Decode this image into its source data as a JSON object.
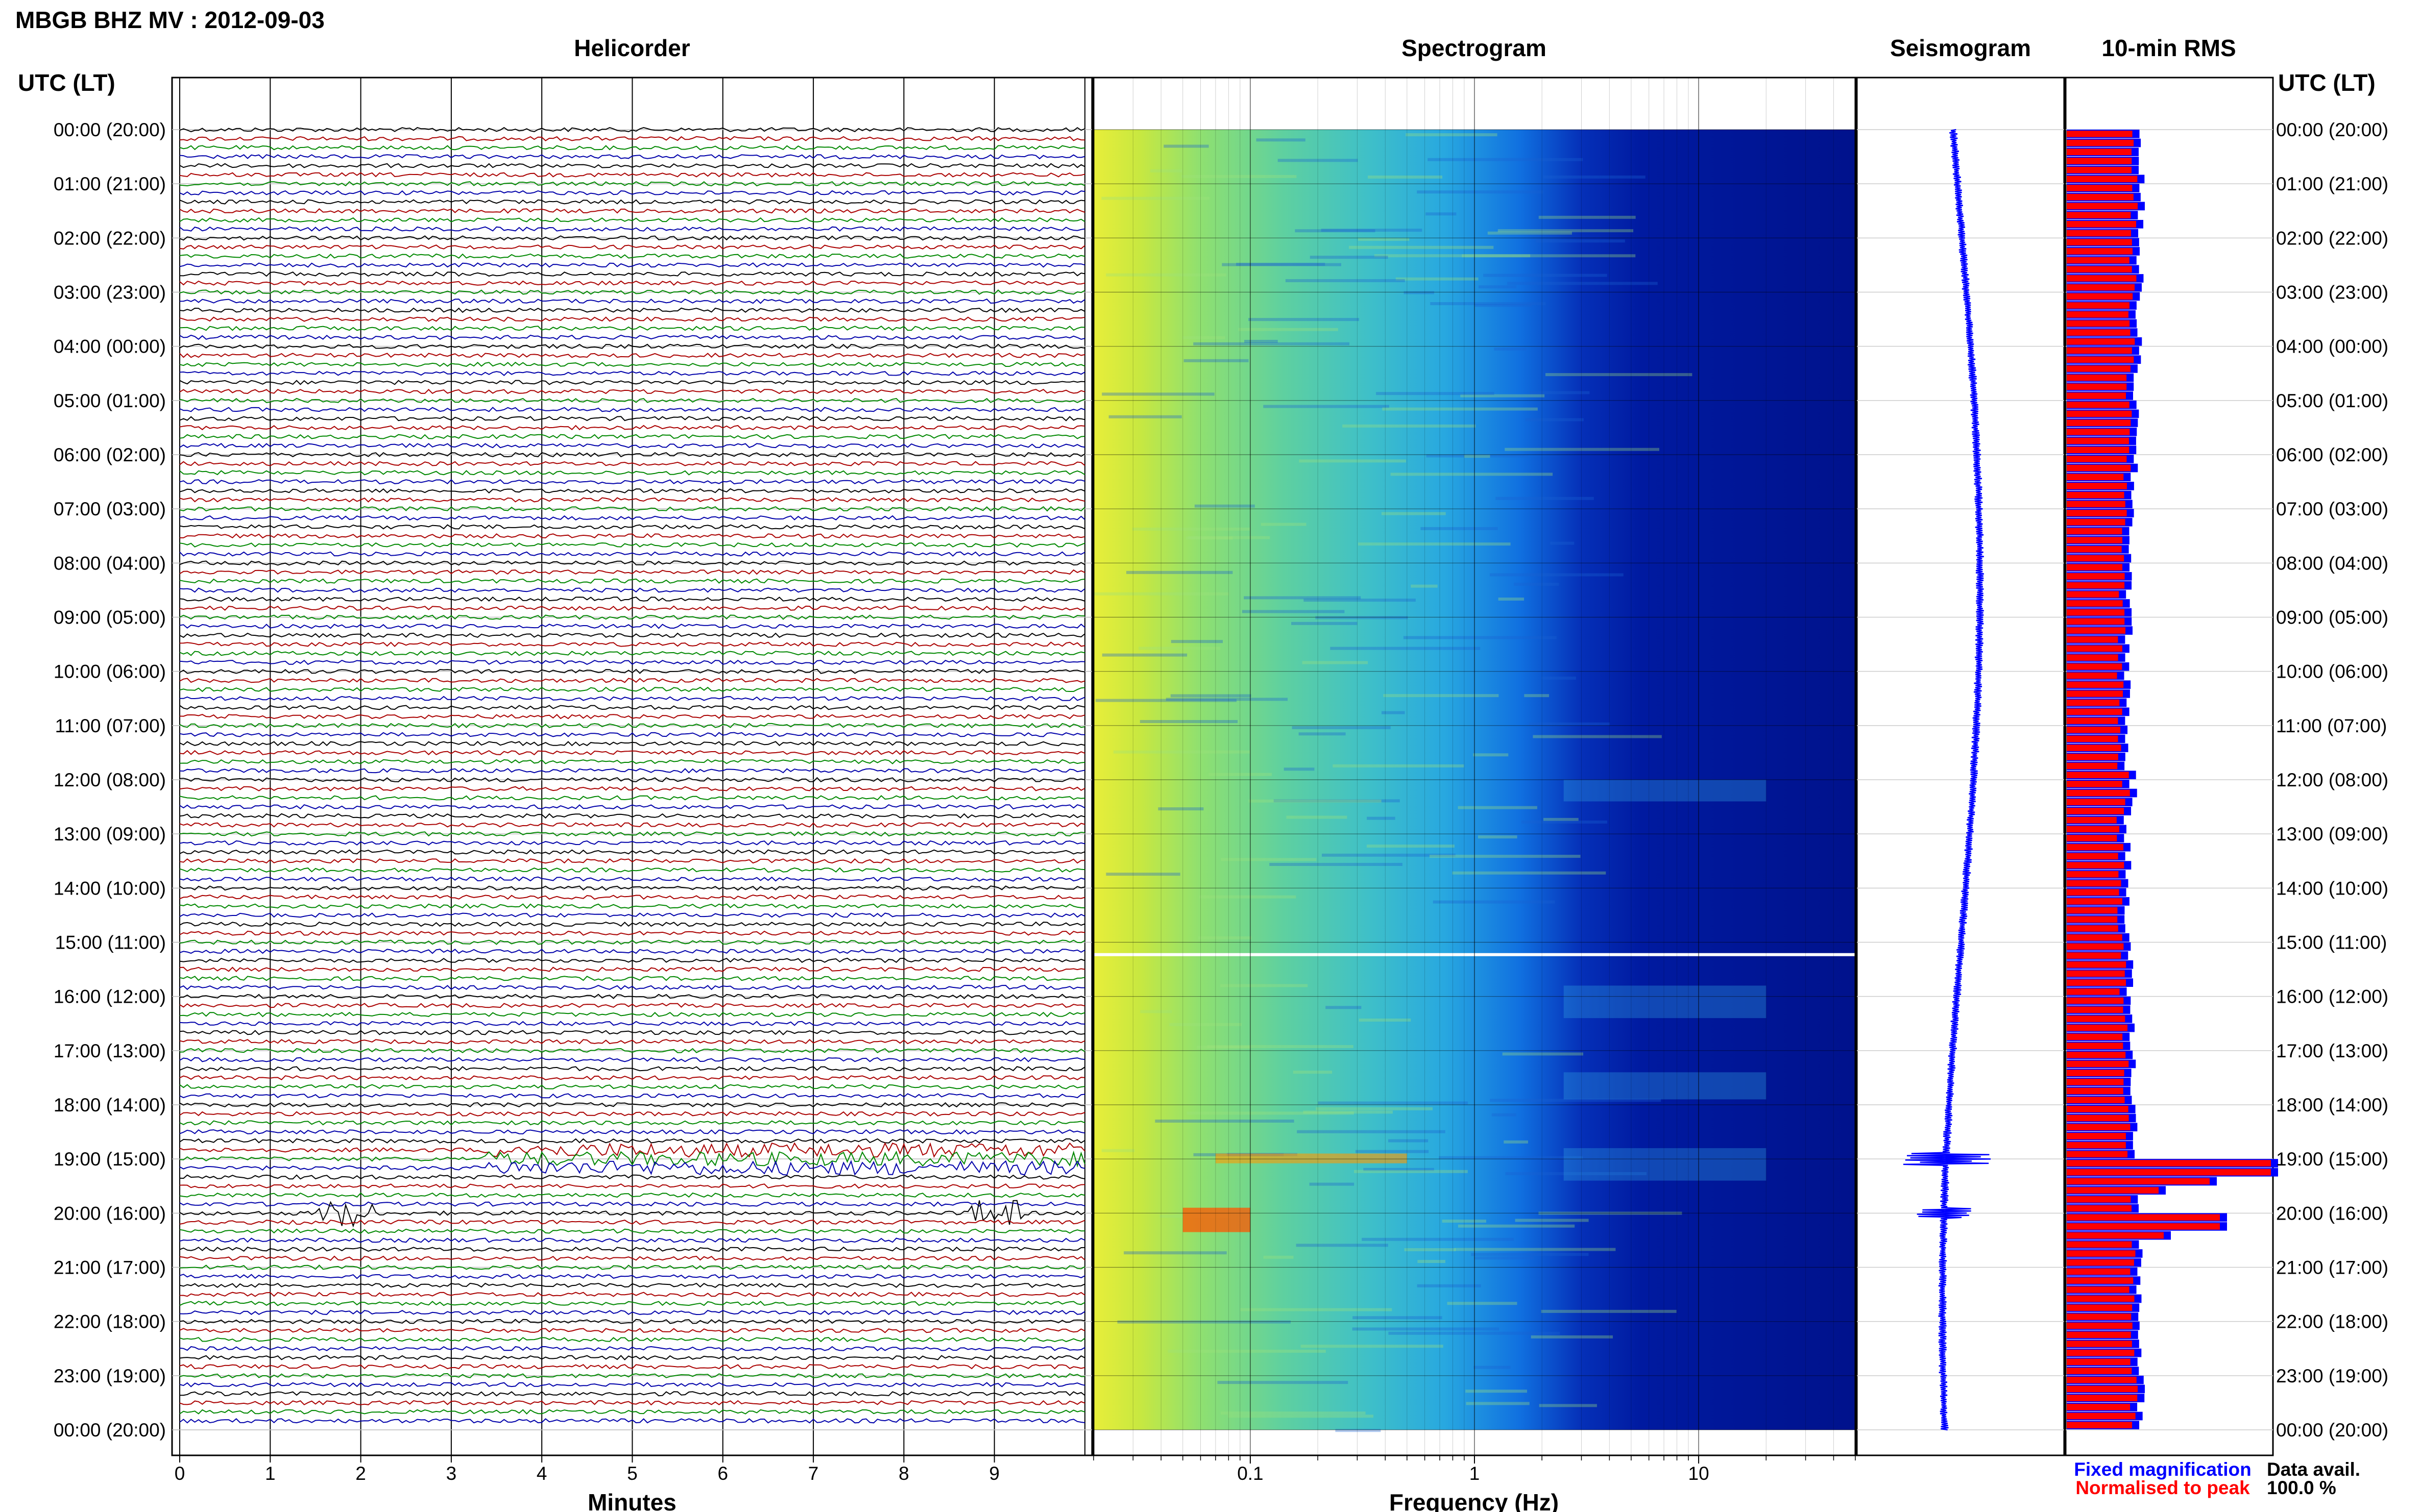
{
  "header": {
    "title": "MBGB BHZ MV : 2012-09-03",
    "panel_helicorder": "Helicorder",
    "panel_spectrogram": "Spectrogram",
    "panel_seismogram": "Seismogram",
    "panel_rms": "10-min RMS",
    "time_axis_label": "UTC (LT)"
  },
  "axes": {
    "helicorder_xlabel": "Minutes",
    "spectrogram_xlabel": "Frequency (Hz)"
  },
  "legend": {
    "fixed": "Fixed magnification",
    "normalised": "Normalised to peak",
    "fixed_color": "#0000ff",
    "normalised_color": "#ff0000"
  },
  "data_availability": {
    "label": "Data avail.",
    "value": "100.0 %"
  },
  "chart_data": [
    {
      "type": "line",
      "name": "helicorder",
      "title": "Helicorder",
      "xlabel": "Minutes",
      "x_ticks": [
        "0",
        "1",
        "2",
        "3",
        "4",
        "5",
        "6",
        "7",
        "8",
        "9"
      ],
      "xlim": [
        0,
        10
      ],
      "trace_colors": [
        "#000000",
        "#aa0000",
        "#008800",
        "#0000aa"
      ],
      "time_labels": [
        "00:00 (20:00)",
        "01:00 (21:00)",
        "02:00 (22:00)",
        "03:00 (23:00)",
        "04:00 (00:00)",
        "05:00 (01:00)",
        "06:00 (02:00)",
        "07:00 (03:00)",
        "08:00 (04:00)",
        "09:00 (05:00)",
        "10:00 (06:00)",
        "11:00 (07:00)",
        "12:00 (08:00)",
        "13:00 (09:00)",
        "14:00 (10:00)",
        "15:00 (11:00)",
        "16:00 (12:00)",
        "17:00 (13:00)",
        "18:00 (14:00)",
        "19:00 (15:00)",
        "20:00 (16:00)",
        "21:00 (17:00)",
        "22:00 (18:00)",
        "23:00 (19:00)",
        "00:00 (20:00)"
      ],
      "traces_per_hour": 6
    },
    {
      "type": "heatmap",
      "name": "spectrogram",
      "title": "Spectrogram",
      "xlabel": "Frequency (Hz)",
      "x_scale": "log",
      "x_ticks": [
        "0.1",
        "1",
        "10"
      ],
      "xlim": [
        0.02,
        50
      ]
    },
    {
      "type": "line",
      "name": "seismogram",
      "title": "Seismogram",
      "color": "#0000ff"
    },
    {
      "type": "bar",
      "name": "rms",
      "title": "10-min RMS",
      "orientation": "horizontal",
      "series": [
        {
          "name": "Fixed magnification",
          "color": "#0000ff"
        },
        {
          "name": "Normalised to peak",
          "color": "#ff0000"
        }
      ],
      "peak_hours": [
        19.0,
        20.0
      ]
    }
  ]
}
